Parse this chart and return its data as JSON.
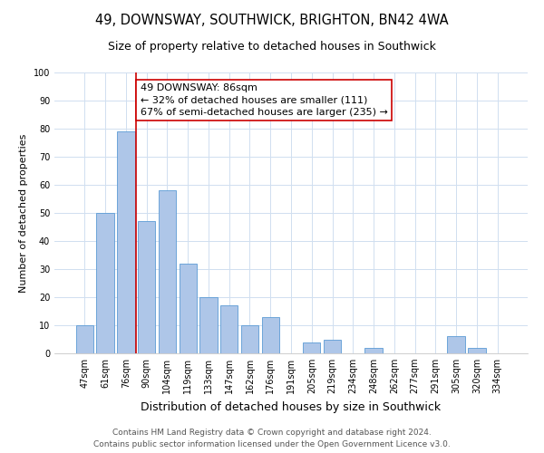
{
  "title": "49, DOWNSWAY, SOUTHWICK, BRIGHTON, BN42 4WA",
  "subtitle": "Size of property relative to detached houses in Southwick",
  "xlabel": "Distribution of detached houses by size in Southwick",
  "ylabel": "Number of detached properties",
  "categories": [
    "47sqm",
    "61sqm",
    "76sqm",
    "90sqm",
    "104sqm",
    "119sqm",
    "133sqm",
    "147sqm",
    "162sqm",
    "176sqm",
    "191sqm",
    "205sqm",
    "219sqm",
    "234sqm",
    "248sqm",
    "262sqm",
    "277sqm",
    "291sqm",
    "305sqm",
    "320sqm",
    "334sqm"
  ],
  "values": [
    10,
    50,
    79,
    47,
    58,
    32,
    20,
    17,
    10,
    13,
    0,
    4,
    5,
    0,
    2,
    0,
    0,
    0,
    6,
    2,
    0
  ],
  "bar_color": "#aec6e8",
  "bar_edge_color": "#5b9bd5",
  "grid_color": "#d0dff0",
  "background_color": "#ffffff",
  "marker_line_color": "#cc0000",
  "annotation_text": "49 DOWNSWAY: 86sqm\n← 32% of detached houses are smaller (111)\n67% of semi-detached houses are larger (235) →",
  "annotation_box_color": "#ffffff",
  "annotation_box_edge_color": "#cc0000",
  "ylim": [
    0,
    100
  ],
  "yticks": [
    0,
    10,
    20,
    30,
    40,
    50,
    60,
    70,
    80,
    90,
    100
  ],
  "footer_line1": "Contains HM Land Registry data © Crown copyright and database right 2024.",
  "footer_line2": "Contains public sector information licensed under the Open Government Licence v3.0.",
  "title_fontsize": 10.5,
  "subtitle_fontsize": 9,
  "xlabel_fontsize": 9,
  "ylabel_fontsize": 8,
  "tick_fontsize": 7,
  "annotation_fontsize": 8,
  "footer_fontsize": 6.5
}
